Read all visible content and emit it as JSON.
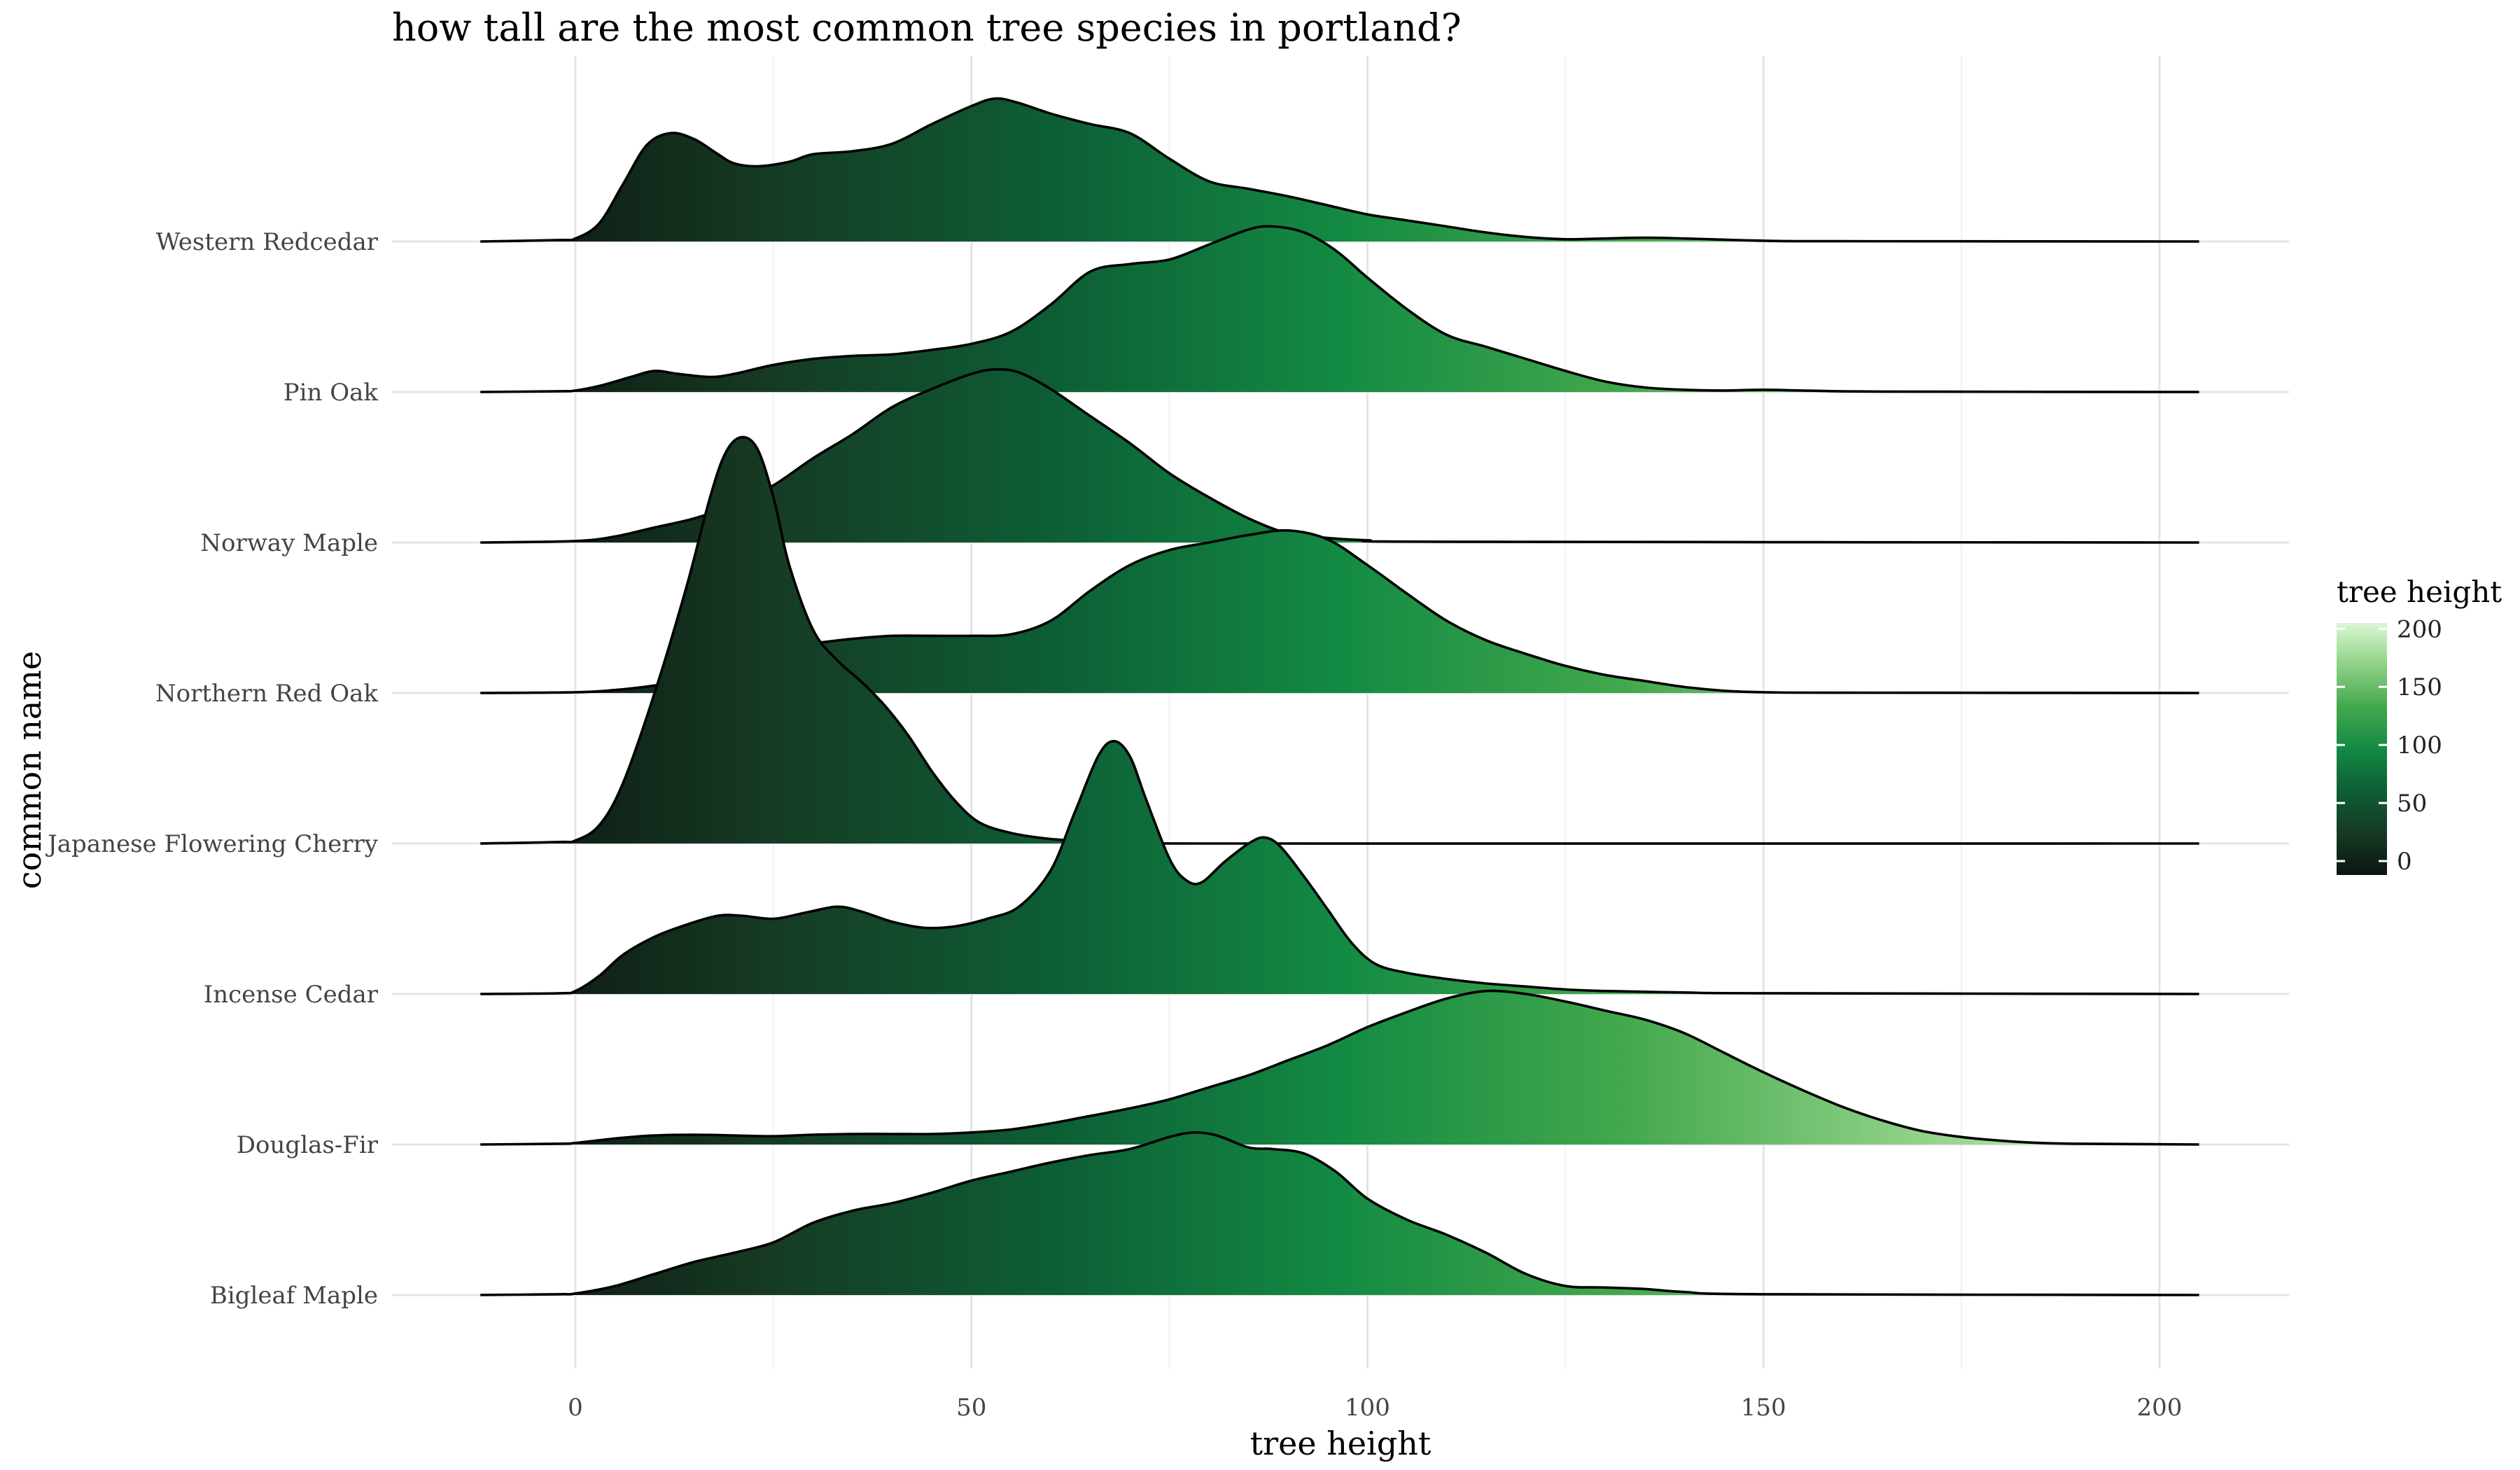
{
  "chart_data": {
    "type": "ridgeline",
    "title": "how tall are the most common tree species in portland?",
    "xlabel": "tree height",
    "ylabel": "common name",
    "xlim": [
      -23,
      216
    ],
    "x_range": [
      -12,
      205
    ],
    "x_ticks": [
      0,
      50,
      100,
      150,
      200
    ],
    "grid": true,
    "categories": [
      "Western Redcedar",
      "Pin Oak",
      "Norway Maple",
      "Northern Red Oak",
      "Japanese Flowering Cherry",
      "Incense Cedar",
      "Douglas-Fir",
      "Bigleaf Maple"
    ],
    "series": [
      {
        "category": "Western Redcedar",
        "points": [
          [
            -12,
            0
          ],
          [
            -2,
            0.01
          ],
          [
            0,
            0.02
          ],
          [
            3,
            0.12
          ],
          [
            6,
            0.38
          ],
          [
            9,
            0.64
          ],
          [
            12,
            0.72
          ],
          [
            15,
            0.68
          ],
          [
            18,
            0.58
          ],
          [
            20,
            0.52
          ],
          [
            23,
            0.5
          ],
          [
            27,
            0.53
          ],
          [
            30,
            0.58
          ],
          [
            35,
            0.6
          ],
          [
            40,
            0.65
          ],
          [
            45,
            0.78
          ],
          [
            50,
            0.9
          ],
          [
            53,
            0.95
          ],
          [
            56,
            0.92
          ],
          [
            60,
            0.85
          ],
          [
            65,
            0.78
          ],
          [
            70,
            0.72
          ],
          [
            75,
            0.55
          ],
          [
            80,
            0.4
          ],
          [
            85,
            0.35
          ],
          [
            90,
            0.3
          ],
          [
            95,
            0.24
          ],
          [
            100,
            0.18
          ],
          [
            105,
            0.14
          ],
          [
            110,
            0.1
          ],
          [
            115,
            0.06
          ],
          [
            120,
            0.03
          ],
          [
            125,
            0.015
          ],
          [
            130,
            0.02
          ],
          [
            135,
            0.025
          ],
          [
            140,
            0.02
          ],
          [
            150,
            0.005
          ],
          [
            160,
            0.002
          ],
          [
            205,
            0
          ]
        ]
      },
      {
        "category": "Pin Oak",
        "points": [
          [
            -12,
            0
          ],
          [
            -2,
            0.005
          ],
          [
            0,
            0.01
          ],
          [
            3,
            0.04
          ],
          [
            7,
            0.1
          ],
          [
            10,
            0.14
          ],
          [
            13,
            0.12
          ],
          [
            17,
            0.1
          ],
          [
            20,
            0.12
          ],
          [
            25,
            0.18
          ],
          [
            30,
            0.22
          ],
          [
            35,
            0.24
          ],
          [
            40,
            0.25
          ],
          [
            45,
            0.28
          ],
          [
            50,
            0.32
          ],
          [
            55,
            0.4
          ],
          [
            60,
            0.58
          ],
          [
            65,
            0.8
          ],
          [
            70,
            0.85
          ],
          [
            75,
            0.88
          ],
          [
            80,
            0.98
          ],
          [
            85,
            1.08
          ],
          [
            88,
            1.1
          ],
          [
            92,
            1.06
          ],
          [
            96,
            0.94
          ],
          [
            100,
            0.76
          ],
          [
            105,
            0.55
          ],
          [
            110,
            0.38
          ],
          [
            115,
            0.3
          ],
          [
            120,
            0.22
          ],
          [
            125,
            0.14
          ],
          [
            130,
            0.07
          ],
          [
            135,
            0.03
          ],
          [
            140,
            0.015
          ],
          [
            145,
            0.01
          ],
          [
            150,
            0.015
          ],
          [
            155,
            0.01
          ],
          [
            165,
            0.003
          ],
          [
            205,
            0
          ]
        ]
      },
      {
        "category": "Norway Maple",
        "points": [
          [
            -12,
            0
          ],
          [
            0,
            0.01
          ],
          [
            5,
            0.04
          ],
          [
            10,
            0.1
          ],
          [
            15,
            0.16
          ],
          [
            20,
            0.25
          ],
          [
            25,
            0.38
          ],
          [
            30,
            0.56
          ],
          [
            35,
            0.72
          ],
          [
            40,
            0.9
          ],
          [
            45,
            1.02
          ],
          [
            50,
            1.12
          ],
          [
            53,
            1.15
          ],
          [
            56,
            1.13
          ],
          [
            60,
            1.02
          ],
          [
            65,
            0.84
          ],
          [
            70,
            0.66
          ],
          [
            75,
            0.46
          ],
          [
            80,
            0.3
          ],
          [
            85,
            0.16
          ],
          [
            90,
            0.06
          ],
          [
            95,
            0.03
          ],
          [
            100,
            0.015
          ],
          [
            110,
            0.005
          ],
          [
            205,
            0
          ]
        ]
      },
      {
        "category": "Northern Red Oak",
        "points": [
          [
            -12,
            0
          ],
          [
            0,
            0.005
          ],
          [
            5,
            0.02
          ],
          [
            10,
            0.05
          ],
          [
            15,
            0.1
          ],
          [
            20,
            0.2
          ],
          [
            25,
            0.3
          ],
          [
            30,
            0.33
          ],
          [
            35,
            0.36
          ],
          [
            40,
            0.38
          ],
          [
            45,
            0.38
          ],
          [
            50,
            0.38
          ],
          [
            55,
            0.39
          ],
          [
            60,
            0.48
          ],
          [
            65,
            0.68
          ],
          [
            70,
            0.85
          ],
          [
            75,
            0.95
          ],
          [
            80,
            1.0
          ],
          [
            85,
            1.05
          ],
          [
            90,
            1.08
          ],
          [
            95,
            1.02
          ],
          [
            100,
            0.85
          ],
          [
            105,
            0.66
          ],
          [
            110,
            0.48
          ],
          [
            115,
            0.35
          ],
          [
            120,
            0.26
          ],
          [
            125,
            0.18
          ],
          [
            130,
            0.12
          ],
          [
            135,
            0.08
          ],
          [
            140,
            0.04
          ],
          [
            145,
            0.015
          ],
          [
            150,
            0.005
          ],
          [
            160,
            0.002
          ],
          [
            205,
            0
          ]
        ]
      },
      {
        "category": "Japanese Flowering Cherry",
        "points": [
          [
            -12,
            0
          ],
          [
            -2,
            0.01
          ],
          [
            0,
            0.02
          ],
          [
            3,
            0.12
          ],
          [
            6,
            0.4
          ],
          [
            10,
            1.0
          ],
          [
            14,
            1.7
          ],
          [
            17,
            2.3
          ],
          [
            19,
            2.6
          ],
          [
            21,
            2.7
          ],
          [
            23,
            2.62
          ],
          [
            25,
            2.3
          ],
          [
            27,
            1.85
          ],
          [
            30,
            1.42
          ],
          [
            33,
            1.22
          ],
          [
            36,
            1.08
          ],
          [
            39,
            0.92
          ],
          [
            42,
            0.72
          ],
          [
            45,
            0.48
          ],
          [
            48,
            0.28
          ],
          [
            51,
            0.14
          ],
          [
            55,
            0.07
          ],
          [
            60,
            0.03
          ],
          [
            65,
            0.015
          ],
          [
            70,
            0.005
          ],
          [
            80,
            0
          ],
          [
            205,
            0
          ]
        ]
      },
      {
        "category": "Incense Cedar",
        "points": [
          [
            -12,
            0
          ],
          [
            -2,
            0.005
          ],
          [
            0,
            0.02
          ],
          [
            3,
            0.12
          ],
          [
            6,
            0.26
          ],
          [
            10,
            0.38
          ],
          [
            14,
            0.46
          ],
          [
            18,
            0.52
          ],
          [
            21,
            0.52
          ],
          [
            25,
            0.5
          ],
          [
            29,
            0.54
          ],
          [
            33,
            0.58
          ],
          [
            36,
            0.55
          ],
          [
            40,
            0.48
          ],
          [
            44,
            0.44
          ],
          [
            48,
            0.45
          ],
          [
            52,
            0.5
          ],
          [
            56,
            0.58
          ],
          [
            60,
            0.82
          ],
          [
            63,
            1.2
          ],
          [
            66,
            1.58
          ],
          [
            68,
            1.68
          ],
          [
            70,
            1.58
          ],
          [
            72,
            1.3
          ],
          [
            75,
            0.9
          ],
          [
            77,
            0.76
          ],
          [
            79,
            0.74
          ],
          [
            82,
            0.88
          ],
          [
            85,
            1.0
          ],
          [
            87,
            1.04
          ],
          [
            89,
            0.98
          ],
          [
            92,
            0.78
          ],
          [
            95,
            0.56
          ],
          [
            98,
            0.34
          ],
          [
            101,
            0.2
          ],
          [
            105,
            0.14
          ],
          [
            110,
            0.1
          ],
          [
            115,
            0.07
          ],
          [
            120,
            0.05
          ],
          [
            125,
            0.03
          ],
          [
            130,
            0.02
          ],
          [
            140,
            0.01
          ],
          [
            150,
            0.005
          ],
          [
            205,
            0
          ]
        ]
      },
      {
        "category": "Douglas-Fir",
        "points": [
          [
            -12,
            0
          ],
          [
            -2,
            0.005
          ],
          [
            0,
            0.01
          ],
          [
            5,
            0.04
          ],
          [
            10,
            0.06
          ],
          [
            15,
            0.065
          ],
          [
            20,
            0.06
          ],
          [
            25,
            0.055
          ],
          [
            30,
            0.065
          ],
          [
            35,
            0.07
          ],
          [
            40,
            0.07
          ],
          [
            45,
            0.07
          ],
          [
            50,
            0.08
          ],
          [
            55,
            0.1
          ],
          [
            60,
            0.14
          ],
          [
            65,
            0.19
          ],
          [
            70,
            0.24
          ],
          [
            75,
            0.3
          ],
          [
            80,
            0.38
          ],
          [
            85,
            0.46
          ],
          [
            90,
            0.56
          ],
          [
            95,
            0.66
          ],
          [
            100,
            0.78
          ],
          [
            105,
            0.88
          ],
          [
            110,
            0.97
          ],
          [
            115,
            1.02
          ],
          [
            120,
            1.0
          ],
          [
            125,
            0.95
          ],
          [
            130,
            0.89
          ],
          [
            135,
            0.83
          ],
          [
            140,
            0.74
          ],
          [
            145,
            0.61
          ],
          [
            150,
            0.48
          ],
          [
            155,
            0.36
          ],
          [
            160,
            0.25
          ],
          [
            165,
            0.16
          ],
          [
            170,
            0.09
          ],
          [
            175,
            0.05
          ],
          [
            180,
            0.025
          ],
          [
            185,
            0.01
          ],
          [
            190,
            0.005
          ],
          [
            205,
            0
          ]
        ]
      },
      {
        "category": "Bigleaf Maple",
        "points": [
          [
            -12,
            0
          ],
          [
            -2,
            0.005
          ],
          [
            0,
            0.01
          ],
          [
            5,
            0.06
          ],
          [
            10,
            0.14
          ],
          [
            15,
            0.22
          ],
          [
            20,
            0.28
          ],
          [
            25,
            0.35
          ],
          [
            30,
            0.48
          ],
          [
            35,
            0.56
          ],
          [
            40,
            0.61
          ],
          [
            45,
            0.68
          ],
          [
            50,
            0.76
          ],
          [
            55,
            0.82
          ],
          [
            60,
            0.88
          ],
          [
            65,
            0.93
          ],
          [
            70,
            0.97
          ],
          [
            75,
            1.05
          ],
          [
            78,
            1.08
          ],
          [
            81,
            1.06
          ],
          [
            85,
            0.98
          ],
          [
            88,
            0.97
          ],
          [
            92,
            0.94
          ],
          [
            96,
            0.82
          ],
          [
            100,
            0.64
          ],
          [
            105,
            0.5
          ],
          [
            110,
            0.4
          ],
          [
            115,
            0.28
          ],
          [
            120,
            0.14
          ],
          [
            125,
            0.06
          ],
          [
            130,
            0.05
          ],
          [
            135,
            0.04
          ],
          [
            140,
            0.02
          ],
          [
            150,
            0.005
          ],
          [
            205,
            0
          ]
        ]
      }
    ],
    "legend": {
      "title": "tree height",
      "position": "right",
      "ticks": [
        0,
        50,
        100,
        150,
        200
      ],
      "range": [
        -12,
        205
      ],
      "colors": [
        "#0b140f",
        "#163a24",
        "#0d5e35",
        "#138a43",
        "#43a84d",
        "#8fd186",
        "#d9f7d3"
      ]
    }
  }
}
